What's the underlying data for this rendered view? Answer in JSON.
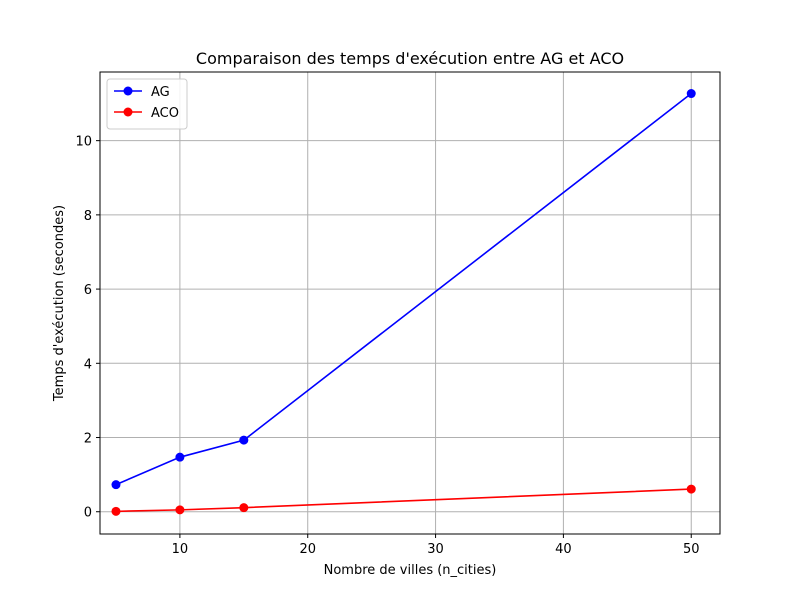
{
  "chart_data": {
    "type": "line",
    "title": "Comparaison des temps d'exécution entre AG et ACO",
    "xlabel": "Nombre de villes (n_cities)",
    "ylabel": "Temps d'exécution (secondes)",
    "xlim": [
      3.75,
      52.25
    ],
    "ylim": [
      -0.6,
      11.85
    ],
    "xticks": [
      10,
      20,
      30,
      40,
      50
    ],
    "yticks": [
      0,
      2,
      4,
      6,
      8,
      10
    ],
    "grid": true,
    "legend": "top-left",
    "x": [
      5,
      10,
      15,
      50
    ],
    "series": [
      {
        "name": "AG",
        "color": "#0000ff",
        "values": [
          0.73,
          1.47,
          1.93,
          11.27
        ]
      },
      {
        "name": "ACO",
        "color": "#ff0000",
        "values": [
          0.01,
          0.05,
          0.11,
          0.61
        ]
      }
    ]
  }
}
